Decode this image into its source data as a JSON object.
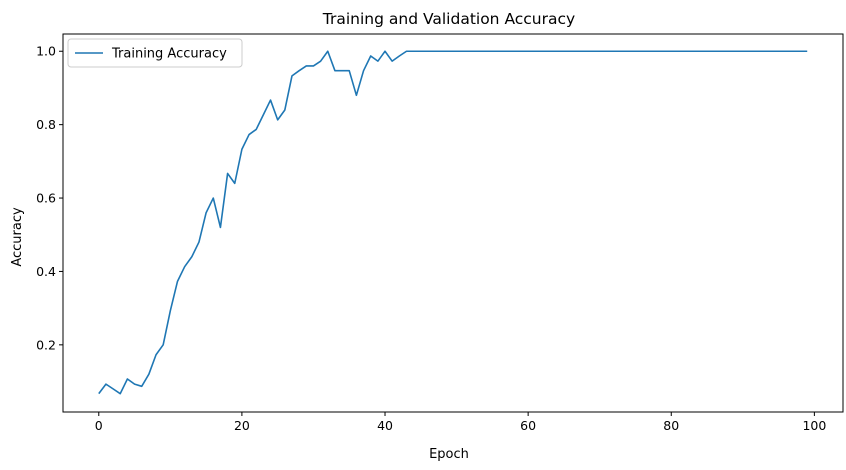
{
  "chart_data": {
    "type": "line",
    "title": "Training and Validation Accuracy",
    "xlabel": "Epoch",
    "ylabel": "Accuracy",
    "xlim": [
      -5,
      104
    ],
    "ylim": [
      0.017,
      1.047
    ],
    "xticks": [
      0,
      20,
      40,
      60,
      80,
      100
    ],
    "yticks": [
      0.2,
      0.4,
      0.6,
      0.8,
      1.0
    ],
    "xtick_labels": [
      "0",
      "20",
      "40",
      "60",
      "80",
      "100"
    ],
    "ytick_labels": [
      "0.2",
      "0.4",
      "0.6",
      "0.8",
      "1.0"
    ],
    "grid": false,
    "legend_position": "upper-left",
    "series": [
      {
        "name": "Training Accuracy",
        "color": "#1f77b4",
        "x": [
          0,
          1,
          2,
          3,
          4,
          5,
          6,
          7,
          8,
          9,
          10,
          11,
          12,
          13,
          14,
          15,
          16,
          17,
          18,
          19,
          20,
          21,
          22,
          23,
          24,
          25,
          26,
          27,
          28,
          29,
          30,
          31,
          32,
          33,
          34,
          35,
          36,
          37,
          38,
          39,
          40,
          41,
          42,
          43,
          44,
          45,
          46,
          47,
          48,
          49,
          50,
          51,
          52,
          53,
          54,
          55,
          56,
          57,
          58,
          59,
          60,
          61,
          62,
          63,
          64,
          65,
          66,
          67,
          68,
          69,
          70,
          71,
          72,
          73,
          74,
          75,
          76,
          77,
          78,
          79,
          80,
          81,
          82,
          83,
          84,
          85,
          86,
          87,
          88,
          89,
          90,
          91,
          92,
          93,
          94,
          95,
          96,
          97,
          98,
          99
        ],
        "values": [
          0.067,
          0.093,
          0.08,
          0.067,
          0.107,
          0.093,
          0.087,
          0.12,
          0.173,
          0.2,
          0.293,
          0.373,
          0.413,
          0.44,
          0.48,
          0.56,
          0.6,
          0.52,
          0.667,
          0.64,
          0.733,
          0.773,
          0.787,
          0.827,
          0.867,
          0.813,
          0.84,
          0.933,
          0.947,
          0.96,
          0.96,
          0.973,
          1.0,
          0.947,
          0.947,
          0.947,
          0.88,
          0.947,
          0.987,
          0.973,
          1.0,
          0.973,
          0.987,
          1.0,
          1.0,
          1.0,
          1.0,
          1.0,
          1.0,
          1.0,
          1.0,
          1.0,
          1.0,
          1.0,
          1.0,
          1.0,
          1.0,
          1.0,
          1.0,
          1.0,
          1.0,
          1.0,
          1.0,
          1.0,
          1.0,
          1.0,
          1.0,
          1.0,
          1.0,
          1.0,
          1.0,
          1.0,
          1.0,
          1.0,
          1.0,
          1.0,
          1.0,
          1.0,
          1.0,
          1.0,
          1.0,
          1.0,
          1.0,
          1.0,
          1.0,
          1.0,
          1.0,
          1.0,
          1.0,
          1.0,
          1.0,
          1.0,
          1.0,
          1.0,
          1.0,
          1.0,
          1.0,
          1.0,
          1.0,
          1.0
        ]
      }
    ]
  }
}
